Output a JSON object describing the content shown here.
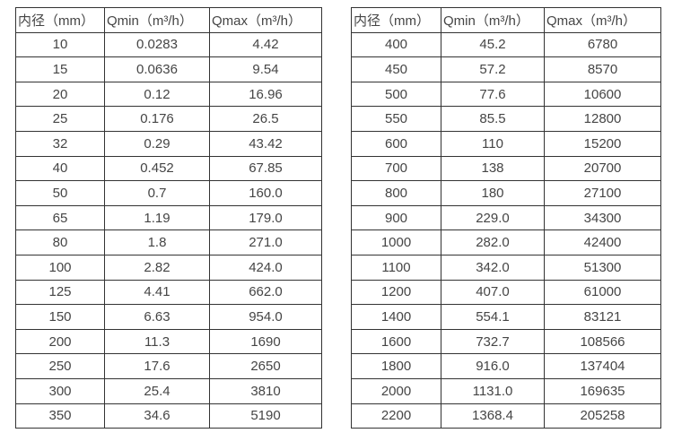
{
  "colors": {
    "background": "#ffffff",
    "border": "#333333",
    "text": "#454545"
  },
  "tables": [
    {
      "name": "small-diameter-flow-table",
      "headers": [
        "内径（mm）",
        "Qmin（m³/h）",
        "Qmax（m³/h）"
      ],
      "rows": [
        [
          "10",
          "0.0283",
          "4.42"
        ],
        [
          "15",
          "0.0636",
          "9.54"
        ],
        [
          "20",
          "0.12",
          "16.96"
        ],
        [
          "25",
          "0.176",
          "26.5"
        ],
        [
          "32",
          "0.29",
          "43.42"
        ],
        [
          "40",
          "0.452",
          "67.85"
        ],
        [
          "50",
          "0.7",
          "160.0"
        ],
        [
          "65",
          "1.19",
          "179.0"
        ],
        [
          "80",
          "1.8",
          "271.0"
        ],
        [
          "100",
          "2.82",
          "424.0"
        ],
        [
          "125",
          "4.41",
          "662.0"
        ],
        [
          "150",
          "6.63",
          "954.0"
        ],
        [
          "200",
          "11.3",
          "1690"
        ],
        [
          "250",
          "17.6",
          "2650"
        ],
        [
          "300",
          "25.4",
          "3810"
        ],
        [
          "350",
          "34.6",
          "5190"
        ]
      ]
    },
    {
      "name": "large-diameter-flow-table",
      "headers": [
        "内径（mm）",
        "Qmin（m³/h）",
        "Qmax（m³/h）"
      ],
      "rows": [
        [
          "400",
          "45.2",
          "6780"
        ],
        [
          "450",
          "57.2",
          "8570"
        ],
        [
          "500",
          "77.6",
          "10600"
        ],
        [
          "550",
          "85.5",
          "12800"
        ],
        [
          "600",
          "110",
          "15200"
        ],
        [
          "700",
          "138",
          "20700"
        ],
        [
          "800",
          "180",
          "27100"
        ],
        [
          "900",
          "229.0",
          "34300"
        ],
        [
          "1000",
          "282.0",
          "42400"
        ],
        [
          "1100",
          "342.0",
          "51300"
        ],
        [
          "1200",
          "407.0",
          "61000"
        ],
        [
          "1400",
          "554.1",
          "83121"
        ],
        [
          "1600",
          "732.7",
          "108566"
        ],
        [
          "1800",
          "916.0",
          "137404"
        ],
        [
          "2000",
          "1131.0",
          "169635"
        ],
        [
          "2200",
          "1368.4",
          "205258"
        ]
      ]
    }
  ]
}
